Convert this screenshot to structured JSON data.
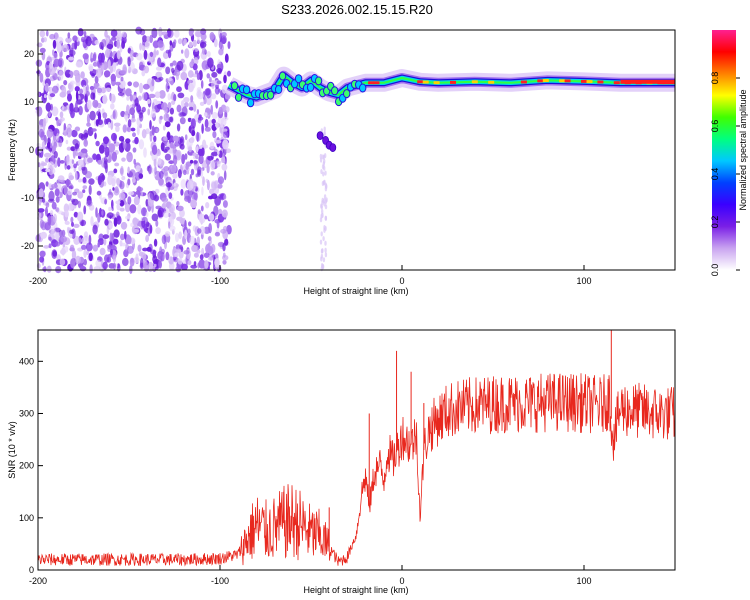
{
  "title": "S233.2026.002.15.15.R20",
  "chart_data": [
    {
      "type": "heatmap",
      "xlabel": "Height of straight line (km)",
      "ylabel": "Frequency (Hz)",
      "xlim": [
        -200,
        150
      ],
      "ylim": [
        -25,
        25
      ],
      "xticks": [
        "-200",
        "-100",
        "0",
        "100"
      ],
      "xtick_values": [
        -200,
        -100,
        0,
        100
      ],
      "yticks": [
        "20",
        "10",
        "0",
        "-10",
        "-20"
      ],
      "ytick_values": [
        20,
        10,
        0,
        -10,
        -20
      ],
      "colorbar": {
        "label": "Normalized spectral amplitude",
        "range": [
          0.0,
          1.0
        ],
        "ticks": [
          "0.0",
          "0.2",
          "0.4",
          "0.6",
          "0.8"
        ],
        "tick_values": [
          0.0,
          0.2,
          0.4,
          0.6,
          0.8
        ],
        "colors": [
          "#ffffff",
          "#c9a3f0",
          "#7a1fe6",
          "#3a00ff",
          "#0040ff",
          "#00c8ff",
          "#00ff80",
          "#40ff00",
          "#ffff00",
          "#ff8000",
          "#ff0000",
          "#ff2090"
        ]
      },
      "noise_region_x": [
        -200,
        -95
      ],
      "carrier_trace": {
        "x": [
          -95,
          -90,
          -85,
          -80,
          -75,
          -70,
          -65,
          -60,
          -55,
          -50,
          -45,
          -40,
          -35,
          -30,
          -25,
          -20,
          -10,
          0,
          10,
          20,
          40,
          60,
          80,
          100,
          120,
          150
        ],
        "y": [
          13.5,
          12.5,
          11.5,
          11.0,
          11.8,
          12.5,
          15.5,
          14.0,
          13.0,
          14.5,
          13.0,
          12.0,
          11.5,
          13.0,
          13.5,
          14.0,
          14.0,
          15.0,
          14.2,
          14.0,
          14.2,
          14.0,
          14.5,
          14.3,
          14.0,
          14.0
        ]
      },
      "secondary_blobs": {
        "x": [
          -45,
          -42,
          -40,
          -38
        ],
        "y": [
          3.0,
          2.0,
          1.0,
          0.5
        ]
      }
    },
    {
      "type": "line",
      "xlabel": "Height of straight line (km)",
      "ylabel": "SNR (10 * v/v)",
      "xlim": [
        -200,
        150
      ],
      "ylim": [
        0,
        460
      ],
      "xticks": [
        "-200",
        "-100",
        "0",
        "100"
      ],
      "xtick_values": [
        -200,
        -100,
        0,
        100
      ],
      "yticks": [
        "0",
        "100",
        "200",
        "300",
        "400"
      ],
      "ytick_values": [
        0,
        100,
        200,
        300,
        400
      ],
      "series": [
        {
          "color": "#e8281e",
          "x": [
            -200,
            -180,
            -160,
            -140,
            -120,
            -100,
            -90,
            -85,
            -80,
            -75,
            -70,
            -65,
            -60,
            -55,
            -50,
            -45,
            -40,
            -35,
            -30,
            -25,
            -22,
            -20,
            -18,
            -15,
            -12,
            -10,
            -8,
            -5,
            -2,
            0,
            2,
            5,
            8,
            10,
            12,
            15,
            20,
            25,
            30,
            40,
            50,
            60,
            70,
            80,
            90,
            100,
            110,
            114,
            116,
            120,
            130,
            140,
            150
          ],
          "y": [
            20,
            20,
            20,
            20,
            20,
            22,
            30,
            60,
            85,
            75,
            80,
            90,
            95,
            85,
            70,
            65,
            45,
            15,
            25,
            70,
            150,
            180,
            120,
            190,
            200,
            170,
            230,
            210,
            235,
            260,
            250,
            240,
            260,
            100,
            230,
            270,
            290,
            305,
            310,
            315,
            318,
            320,
            320,
            322,
            322,
            320,
            315,
            330,
            250,
            310,
            305,
            300,
            300
          ]
        }
      ],
      "spikes": {
        "x": [
          -65,
          -40,
          -18,
          -3,
          5,
          12,
          115,
          116
        ],
        "y": [
          150,
          120,
          300,
          420,
          380,
          320,
          460,
          230
        ]
      }
    }
  ]
}
